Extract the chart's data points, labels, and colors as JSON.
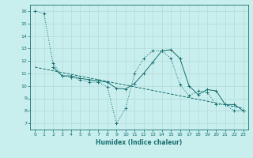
{
  "xlabel": "Humidex (Indice chaleur)",
  "background_color": "#c8eeee",
  "grid_color": "#b8dede",
  "line_color": "#1a7070",
  "xlim": [
    -0.5,
    23.5
  ],
  "ylim": [
    6.5,
    16.5
  ],
  "yticks": [
    7,
    8,
    9,
    10,
    11,
    12,
    13,
    14,
    15,
    16
  ],
  "xticks": [
    0,
    1,
    2,
    3,
    4,
    5,
    6,
    7,
    8,
    9,
    10,
    11,
    12,
    13,
    14,
    15,
    16,
    17,
    18,
    19,
    20,
    21,
    22,
    23
  ],
  "series1_x": [
    0,
    1,
    2,
    3,
    4,
    5,
    6,
    7,
    8,
    9,
    10,
    11,
    12,
    13,
    14,
    15,
    16,
    17,
    18,
    19,
    20,
    21,
    22,
    23
  ],
  "series1_y": [
    16.0,
    15.8,
    11.8,
    10.8,
    10.7,
    10.5,
    10.3,
    10.3,
    9.9,
    7.0,
    8.2,
    11.0,
    12.2,
    12.8,
    12.8,
    12.2,
    10.1,
    9.2,
    9.6,
    9.5,
    8.5,
    8.5,
    8.0,
    8.0
  ],
  "series2_x": [
    2,
    3,
    4,
    5,
    6,
    7,
    8,
    9,
    10,
    11,
    12,
    13,
    14,
    15,
    16,
    17,
    18,
    19,
    20,
    21,
    22,
    23
  ],
  "series2_y": [
    11.5,
    10.8,
    10.8,
    10.6,
    10.5,
    10.4,
    10.3,
    9.8,
    9.75,
    10.2,
    11.0,
    11.9,
    12.8,
    12.9,
    12.2,
    10.0,
    9.3,
    9.7,
    9.6,
    8.5,
    8.5,
    8.0
  ],
  "trend_x": [
    0,
    23
  ],
  "trend_y": [
    11.5,
    8.2
  ]
}
